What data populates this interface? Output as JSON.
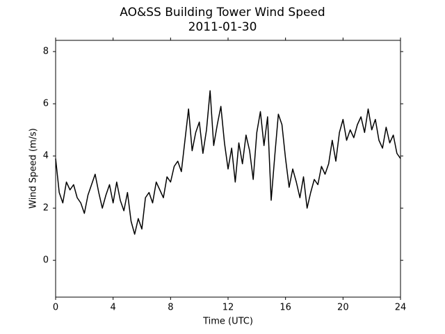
{
  "chart_data": {
    "type": "line",
    "title": "AO&SS Building Tower Wind Speed",
    "subtitle": "2011-01-30",
    "x_label": "Time (UTC)",
    "y_label": "Wind Speed (m/s)",
    "x": [
      0,
      0.25,
      0.5,
      0.75,
      1,
      1.25,
      1.5,
      1.75,
      2,
      2.25,
      2.5,
      2.75,
      3,
      3.25,
      3.5,
      3.75,
      4,
      4.25,
      4.5,
      4.75,
      5,
      5.25,
      5.5,
      5.75,
      6,
      6.25,
      6.5,
      6.75,
      7,
      7.25,
      7.5,
      7.75,
      8,
      8.25,
      8.5,
      8.75,
      9,
      9.25,
      9.5,
      9.75,
      10,
      10.25,
      10.5,
      10.75,
      11,
      11.25,
      11.5,
      11.75,
      12,
      12.25,
      12.5,
      12.75,
      13,
      13.25,
      13.5,
      13.75,
      14,
      14.25,
      14.5,
      14.75,
      15,
      15.25,
      15.5,
      15.75,
      16,
      16.25,
      16.5,
      16.75,
      17,
      17.25,
      17.5,
      17.75,
      18,
      18.25,
      18.5,
      18.75,
      19,
      19.25,
      19.5,
      19.75,
      20,
      20.25,
      20.5,
      20.75,
      21,
      21.25,
      21.5,
      21.75,
      22,
      22.25,
      22.5,
      22.75,
      23,
      23.25,
      23.5,
      23.75,
      24
    ],
    "series": [
      {
        "color": "#000000",
        "values": [
          3.9,
          2.6,
          2.2,
          3.0,
          2.7,
          2.9,
          2.4,
          2.2,
          1.8,
          2.5,
          2.9,
          3.3,
          2.6,
          2.0,
          2.5,
          2.9,
          2.2,
          3.0,
          2.3,
          1.9,
          2.6,
          1.5,
          1.0,
          1.6,
          1.2,
          2.4,
          2.6,
          2.2,
          3.0,
          2.7,
          2.4,
          3.2,
          3.0,
          3.6,
          3.8,
          3.4,
          4.6,
          5.8,
          4.2,
          4.9,
          5.3,
          4.1,
          5.0,
          6.5,
          4.4,
          5.2,
          5.9,
          4.5,
          3.5,
          4.3,
          3.0,
          4.5,
          3.7,
          4.8,
          4.2,
          3.1,
          4.9,
          5.7,
          4.4,
          5.5,
          2.3,
          4.0,
          5.6,
          5.2,
          3.9,
          2.8,
          3.5,
          3.0,
          2.4,
          3.2,
          2.0,
          2.6,
          3.1,
          2.9,
          3.6,
          3.3,
          3.7,
          4.6,
          3.8,
          4.9,
          5.4,
          4.6,
          5.0,
          4.7,
          5.2,
          5.5,
          4.9,
          5.8,
          5.0,
          5.4,
          4.6,
          4.3,
          5.1,
          4.5,
          4.8,
          4.1,
          3.9
        ]
      }
    ],
    "xlim": [
      0,
      24
    ],
    "xticks": [
      0,
      4,
      8,
      12,
      16,
      20,
      24
    ],
    "ylim": [
      -1.41,
      8.43
    ],
    "yticks": [
      0,
      2,
      4,
      6,
      8
    ],
    "grid": false
  }
}
